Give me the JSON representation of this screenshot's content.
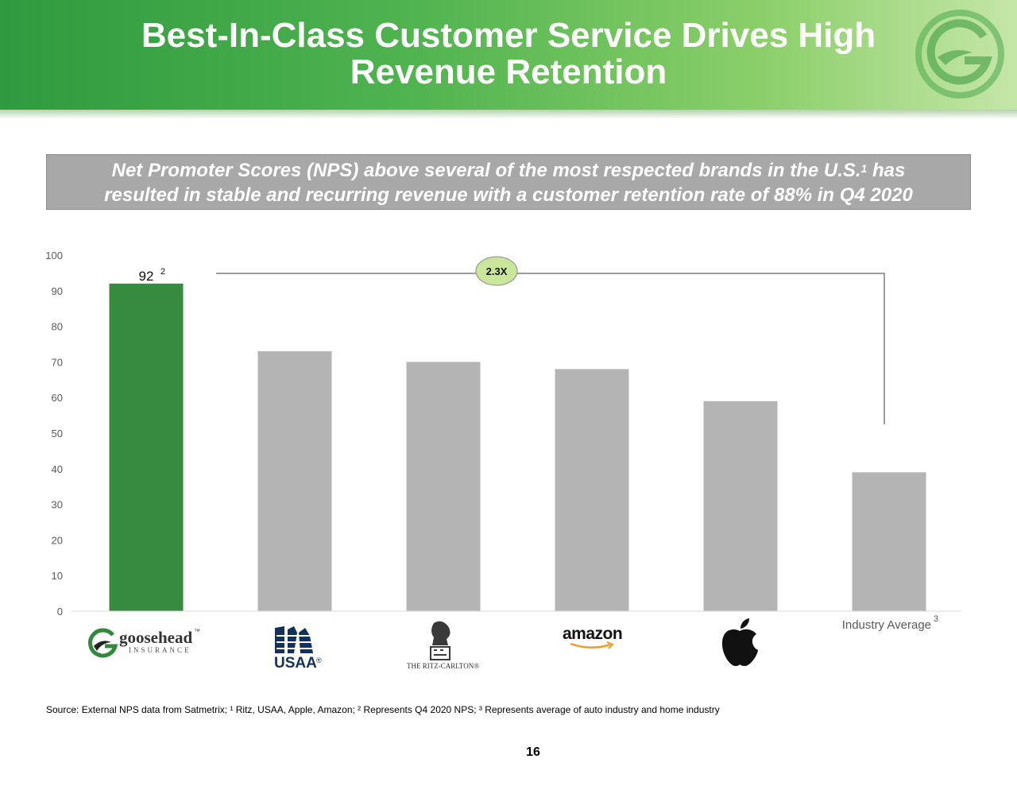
{
  "header": {
    "title_line1": "Best-In-Class Customer Service Drives High",
    "title_line2": "Revenue Retention"
  },
  "banner": {
    "line1": "Net Promoter Scores (NPS) above several of the most respected brands in the U.S.",
    "line1_sup": "1",
    "line1_end": " has",
    "line2": "resulted in stable and recurring revenue with a customer retention rate of 88% in Q4 2020"
  },
  "chart_data": {
    "type": "bar",
    "categories": [
      "Goosehead Insurance",
      "USAA",
      "The Ritz-Carlton",
      "Amazon",
      "Apple",
      "Industry Average"
    ],
    "values": [
      92,
      73,
      70,
      68,
      59,
      39
    ],
    "ylim": [
      0,
      100
    ],
    "yticks": [
      0,
      10,
      20,
      30,
      40,
      50,
      60,
      70,
      80,
      90,
      100
    ],
    "data_labels": [
      {
        "index": 0,
        "text": "92",
        "sup": "2"
      }
    ],
    "annotation": {
      "text": "2.3X",
      "from_index": 0,
      "to_index": 5
    },
    "grid": false,
    "colors": {
      "highlight": "#368b41",
      "other": "#b4b4b4"
    }
  },
  "brands": {
    "goosehead_name": "goosehead",
    "goosehead_tm": "™",
    "goosehead_sub": "INSURANCE",
    "usaa": "USAA",
    "usaa_reg": "®",
    "ritz": "THE RITZ-CARLTON®",
    "amazon": "amazon",
    "industry_label": "Industry Average",
    "industry_sup": "3"
  },
  "footer": {
    "source": "Source: External NPS data from Satmetrix; ¹ Ritz, USAA, Apple, Amazon; ² Represents Q4 2020 NPS; ³ Represents average of auto industry and home industry",
    "page_number": "16"
  },
  "colors": {
    "header_green": "#3aa244",
    "banner_gray": "#a8a8a8",
    "callout_fill": "#c9e69b"
  }
}
